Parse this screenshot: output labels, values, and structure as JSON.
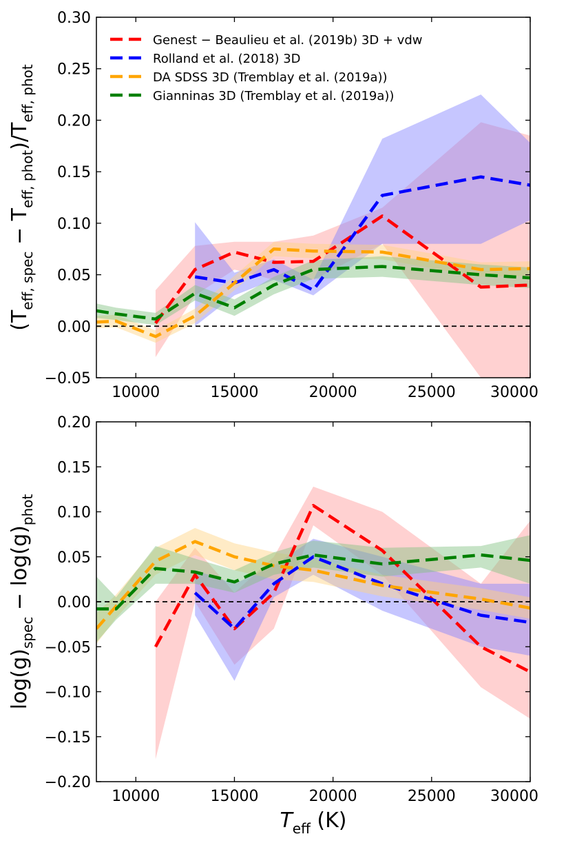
{
  "chart_data": [
    {
      "type": "line",
      "panel": "top",
      "xlabel_html": "",
      "ylabel_parts": {
        "open": "(T",
        "sub1": "eff, spec",
        "mid": " − T",
        "sub2": "eff, phot",
        "close": ")/T",
        "sub3": "eff, phot"
      },
      "xlim": [
        8000,
        30000
      ],
      "ylim": [
        -0.05,
        0.3
      ],
      "xticks": [
        10000,
        15000,
        20000,
        25000,
        30000
      ],
      "yticks": [
        -0.05,
        0.0,
        0.05,
        0.1,
        0.15,
        0.2,
        0.25,
        0.3
      ],
      "ytick_labels": [
        "−0.05",
        "0.00",
        "0.05",
        "0.10",
        "0.15",
        "0.20",
        "0.25",
        "0.30"
      ],
      "xtick_labels": [
        "10000",
        "15000",
        "20000",
        "25000",
        "30000"
      ],
      "reference_line_y": 0.0,
      "legend_position": "top-left",
      "series": [
        {
          "name": "Genest − Beaulieu et al. (2019b) 3D + vdw",
          "color": "#ff0000",
          "band_color": "#ff9999",
          "x": [
            11000,
            13000,
            15000,
            17000,
            19000,
            22500,
            27500,
            30000
          ],
          "y": [
            0.003,
            0.055,
            0.072,
            0.062,
            0.063,
            0.107,
            0.038,
            0.04
          ],
          "lower": [
            -0.03,
            0.03,
            0.055,
            0.045,
            0.045,
            0.08,
            -0.05,
            -0.1
          ],
          "upper": [
            0.035,
            0.078,
            0.082,
            0.082,
            0.088,
            0.115,
            0.198,
            0.185
          ]
        },
        {
          "name": "Rolland et al. (2018) 3D",
          "color": "#0000ff",
          "band_color": "#8080ff",
          "x": [
            13000,
            15000,
            17000,
            19000,
            22500,
            27500,
            30000
          ],
          "y": [
            0.048,
            0.042,
            0.055,
            0.035,
            0.127,
            0.145,
            0.137
          ],
          "lower": [
            0.0,
            0.03,
            0.045,
            0.03,
            0.08,
            0.08,
            0.103
          ],
          "upper": [
            0.101,
            0.052,
            0.065,
            0.045,
            0.182,
            0.225,
            0.178
          ]
        },
        {
          "name": "DA SDSS 3D (Tremblay et al. (2019a))",
          "color": "#ffa500",
          "band_color": "#ffd280",
          "x": [
            8000,
            9000,
            11000,
            13000,
            15000,
            17000,
            19000,
            22500,
            27500,
            30000
          ],
          "y": [
            0.004,
            0.005,
            -0.01,
            0.01,
            0.042,
            0.075,
            0.073,
            0.072,
            0.055,
            0.056
          ],
          "lower": [
            -0.002,
            -0.001,
            -0.016,
            0.003,
            0.035,
            0.068,
            0.066,
            0.065,
            0.048,
            0.049
          ],
          "upper": [
            0.01,
            0.011,
            -0.004,
            0.017,
            0.049,
            0.082,
            0.08,
            0.079,
            0.062,
            0.063
          ]
        },
        {
          "name": "Gianninas 3D (Tremblay et al. (2019a))",
          "color": "#008000",
          "band_color": "#80c080",
          "x": [
            8000,
            9000,
            11000,
            13000,
            15000,
            17000,
            19000,
            22500,
            27500,
            30000
          ],
          "y": [
            0.015,
            0.012,
            0.007,
            0.032,
            0.018,
            0.04,
            0.055,
            0.058,
            0.05,
            0.047
          ],
          "lower": [
            0.008,
            0.006,
            0.001,
            0.025,
            0.01,
            0.031,
            0.046,
            0.048,
            0.04,
            0.037
          ],
          "upper": [
            0.022,
            0.018,
            0.013,
            0.04,
            0.026,
            0.048,
            0.064,
            0.068,
            0.06,
            0.057
          ]
        }
      ]
    },
    {
      "type": "line",
      "panel": "bottom",
      "xlabel_parts": {
        "main": "T",
        "sub": "eff",
        "unit": " (K)"
      },
      "ylabel_parts": {
        "a": "log(g)",
        "sub1": "spec",
        "mid": " − log(g)",
        "sub2": "phot"
      },
      "xlim": [
        8000,
        30000
      ],
      "ylim": [
        -0.2,
        0.2
      ],
      "xticks": [
        10000,
        15000,
        20000,
        25000,
        30000
      ],
      "yticks": [
        -0.2,
        -0.15,
        -0.1,
        -0.05,
        0.0,
        0.05,
        0.1,
        0.15,
        0.2
      ],
      "ytick_labels": [
        "−0.20",
        "−0.15",
        "−0.10",
        "−0.05",
        "0.00",
        "0.05",
        "0.10",
        "0.15",
        "0.20"
      ],
      "xtick_labels": [
        "10000",
        "15000",
        "20000",
        "25000",
        "30000"
      ],
      "reference_line_y": 0.0,
      "series": [
        {
          "name": "Genest − Beaulieu et al. (2019b) 3D + vdw",
          "color": "#ff0000",
          "band_color": "#ff9999",
          "x": [
            11000,
            13000,
            15000,
            17000,
            19000,
            22500,
            27500,
            30000
          ],
          "y": [
            -0.05,
            0.03,
            -0.03,
            0.01,
            0.107,
            0.057,
            -0.05,
            -0.078
          ],
          "lower": [
            -0.175,
            0.0,
            -0.07,
            -0.03,
            0.085,
            0.03,
            -0.095,
            -0.13
          ],
          "upper": [
            0.0,
            0.06,
            0.01,
            0.05,
            0.128,
            0.1,
            0.02,
            0.09
          ]
        },
        {
          "name": "Rolland et al. (2018) 3D",
          "color": "#0000ff",
          "band_color": "#8080ff",
          "x": [
            13000,
            15000,
            17000,
            19000,
            22500,
            27500,
            30000
          ],
          "y": [
            0.01,
            -0.03,
            0.02,
            0.05,
            0.02,
            -0.015,
            -0.023
          ],
          "lower": [
            -0.015,
            -0.088,
            0.005,
            0.03,
            -0.01,
            -0.05,
            -0.06
          ],
          "upper": [
            0.035,
            0.02,
            0.04,
            0.07,
            0.05,
            0.02,
            0.02
          ]
        },
        {
          "name": "DA SDSS 3D (Tremblay et al. (2019a))",
          "color": "#ffa500",
          "band_color": "#ffd280",
          "x": [
            8000,
            9000,
            11000,
            13000,
            15000,
            17000,
            19000,
            22500,
            27500,
            30000
          ],
          "y": [
            -0.03,
            -0.005,
            0.045,
            0.067,
            0.05,
            0.04,
            0.035,
            0.018,
            0.003,
            -0.007
          ],
          "lower": [
            -0.047,
            -0.018,
            0.03,
            0.052,
            0.035,
            0.025,
            0.022,
            0.006,
            -0.009,
            -0.019
          ],
          "upper": [
            -0.013,
            0.008,
            0.06,
            0.082,
            0.065,
            0.055,
            0.048,
            0.03,
            0.015,
            0.005
          ]
        },
        {
          "name": "Gianninas 3D (Tremblay et al. (2019a))",
          "color": "#008000",
          "band_color": "#80c080",
          "x": [
            8000,
            9000,
            11000,
            13000,
            15000,
            17000,
            19000,
            22500,
            27500,
            30000
          ],
          "y": [
            -0.008,
            -0.008,
            0.037,
            0.033,
            0.022,
            0.042,
            0.052,
            0.042,
            0.052,
            0.046
          ],
          "lower": [
            -0.045,
            -0.02,
            0.02,
            0.02,
            0.01,
            0.03,
            0.038,
            0.028,
            0.038,
            0.02
          ],
          "upper": [
            0.028,
            0.005,
            0.062,
            0.048,
            0.035,
            0.055,
            0.068,
            0.06,
            0.062,
            0.074
          ]
        }
      ]
    }
  ]
}
